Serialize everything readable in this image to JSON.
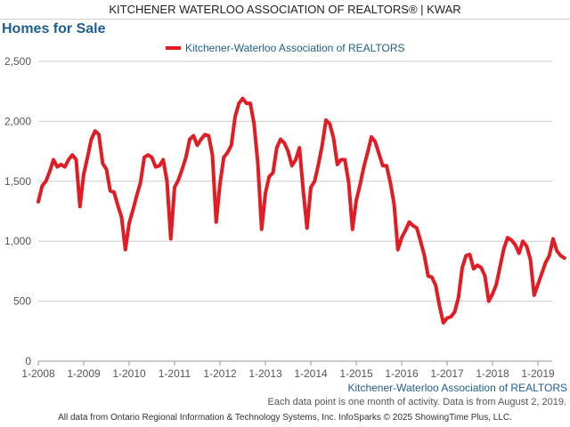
{
  "header": {
    "title": "KITCHENER WATERLOO ASSOCIATION OF REALTORS® | KWAR"
  },
  "footer": {
    "note": "Each data point is one month of activity. Data is from August 2, 2019.",
    "source": "All data from Ontario Regional Information & Technology Systems, Inc. InfoSparks © 2025 ShowingTime Plus, LLC."
  },
  "colors": {
    "series": "#e31b23",
    "title": "#1f5e92",
    "grid": "#cccccc",
    "axis_text": "#555555"
  },
  "chart_data": {
    "type": "line",
    "title": "Homes for Sale",
    "xlabel": "Kitchener-Waterloo Association of REALTORS",
    "ylabel": "",
    "ylim": [
      0,
      2500
    ],
    "yticks": [
      0,
      500,
      1000,
      1500,
      2000,
      2500
    ],
    "ytick_labels": [
      "0",
      "500",
      "1,000",
      "1,500",
      "2,000",
      "2,500"
    ],
    "x_tick_labels": [
      "1-2008",
      "1-2009",
      "1-2010",
      "1-2011",
      "1-2012",
      "1-2013",
      "1-2014",
      "1-2015",
      "1-2016",
      "1-2017",
      "1-2018",
      "1-2019"
    ],
    "x_start": "1-2008",
    "x_end": "7-2019",
    "grid": true,
    "legend": "top-center",
    "series": [
      {
        "name": "Kitchener-Waterloo Association of REALTORS",
        "color": "#e31b23",
        "values": [
          1330,
          1460,
          1500,
          1580,
          1680,
          1620,
          1640,
          1620,
          1680,
          1720,
          1680,
          1290,
          1560,
          1700,
          1850,
          1920,
          1890,
          1650,
          1600,
          1420,
          1410,
          1300,
          1200,
          930,
          1150,
          1260,
          1380,
          1490,
          1700,
          1720,
          1700,
          1620,
          1630,
          1680,
          1500,
          1020,
          1450,
          1510,
          1600,
          1700,
          1850,
          1880,
          1800,
          1850,
          1890,
          1880,
          1720,
          1160,
          1480,
          1700,
          1740,
          1800,
          2040,
          2150,
          2190,
          2150,
          2150,
          1980,
          1650,
          1100,
          1400,
          1540,
          1570,
          1780,
          1850,
          1820,
          1750,
          1630,
          1680,
          1780,
          1420,
          1110,
          1450,
          1500,
          1640,
          1800,
          2010,
          1980,
          1860,
          1640,
          1680,
          1680,
          1490,
          1100,
          1340,
          1470,
          1620,
          1740,
          1870,
          1830,
          1730,
          1630,
          1630,
          1490,
          1310,
          930,
          1030,
          1090,
          1160,
          1130,
          1110,
          1000,
          880,
          710,
          700,
          630,
          460,
          320,
          360,
          370,
          410,
          530,
          780,
          880,
          890,
          770,
          800,
          780,
          710,
          500,
          560,
          640,
          790,
          940,
          1030,
          1010,
          970,
          900,
          1000,
          960,
          850,
          550,
          640,
          730,
          820,
          880,
          1020,
          920,
          880,
          860
        ]
      }
    ]
  }
}
